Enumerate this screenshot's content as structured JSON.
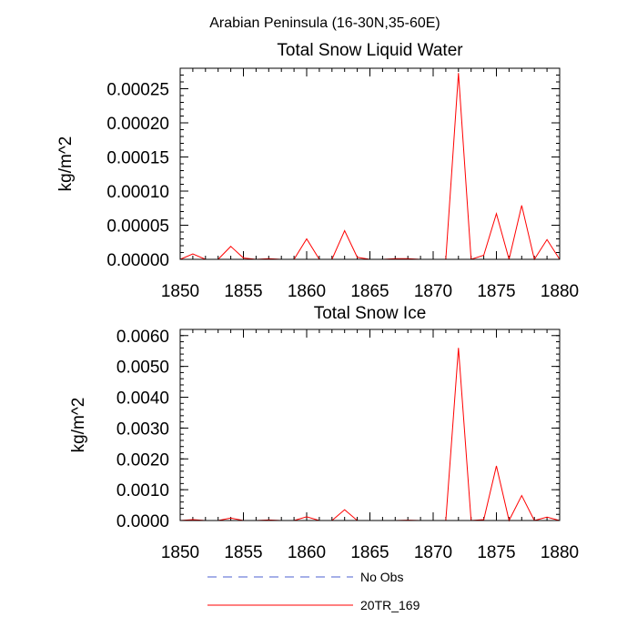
{
  "suptitle": "Arabian Peninsula (16-30N,35-60E)",
  "chart_data": [
    {
      "type": "line",
      "title": "Total Snow Liquid Water",
      "ylabel": "kg/m^2",
      "xlabel": "",
      "xlim": [
        1850,
        1880
      ],
      "ylim": [
        0,
        0.00028
      ],
      "xticks": [
        1850,
        1855,
        1860,
        1865,
        1870,
        1875,
        1880
      ],
      "yticks": [
        0,
        5e-05,
        0.0001,
        0.00015,
        0.0002,
        0.00025
      ],
      "ytick_labels": [
        "0.00000",
        "0.00005",
        "0.00010",
        "0.00015",
        "0.00020",
        "0.00025"
      ],
      "grid": false,
      "x": [
        1850,
        1851,
        1852,
        1853,
        1854,
        1855,
        1856,
        1857,
        1858,
        1859,
        1860,
        1861,
        1862,
        1863,
        1864,
        1865,
        1866,
        1867,
        1868,
        1869,
        1870,
        1871,
        1872,
        1873,
        1874,
        1875,
        1876,
        1877,
        1878,
        1879,
        1880
      ],
      "series": [
        {
          "name": "20TR_169",
          "color": "#ff0000",
          "values": [
            0,
            8e-06,
            0,
            0,
            1.9e-05,
            2e-06,
            0,
            1e-06,
            0,
            0,
            3e-05,
            0,
            0,
            4.2e-05,
            3e-06,
            0,
            0,
            1e-06,
            1e-06,
            0,
            0,
            0,
            0.000273,
            0,
            6e-06,
            6.7e-05,
            0,
            7.9e-05,
            0,
            2.9e-05,
            0
          ]
        }
      ]
    },
    {
      "type": "line",
      "title": "Total Snow Ice",
      "ylabel": "kg/m^2",
      "xlabel": "",
      "xlim": [
        1850,
        1880
      ],
      "ylim": [
        0,
        0.0062
      ],
      "xticks": [
        1850,
        1855,
        1860,
        1865,
        1870,
        1875,
        1880
      ],
      "yticks": [
        0,
        0.001,
        0.002,
        0.003,
        0.004,
        0.005,
        0.006
      ],
      "ytick_labels": [
        "0.0000",
        "0.0010",
        "0.0020",
        "0.0030",
        "0.0040",
        "0.0050",
        "0.0060"
      ],
      "grid": false,
      "x": [
        1850,
        1851,
        1852,
        1853,
        1854,
        1855,
        1856,
        1857,
        1858,
        1859,
        1860,
        1861,
        1862,
        1863,
        1864,
        1865,
        1866,
        1867,
        1868,
        1869,
        1870,
        1871,
        1872,
        1873,
        1874,
        1875,
        1876,
        1877,
        1878,
        1879,
        1880
      ],
      "series": [
        {
          "name": "20TR_169",
          "color": "#ff0000",
          "values": [
            0,
            3e-05,
            0,
            0,
            8e-05,
            0,
            0,
            2e-05,
            0,
            0,
            0.00012,
            0,
            0,
            0.00035,
            0,
            0,
            0,
            0,
            1e-05,
            0,
            0,
            0,
            0.0056,
            0,
            3e-05,
            0.00177,
            0,
            0.00081,
            0,
            0.00011,
            0
          ]
        }
      ]
    }
  ],
  "legend": {
    "placement": "bottom",
    "entries": [
      {
        "label": "No Obs",
        "color": "#4b5fd1",
        "style": "dashed"
      },
      {
        "label": "20TR_169",
        "color": "#ff0000",
        "style": "solid"
      }
    ]
  }
}
